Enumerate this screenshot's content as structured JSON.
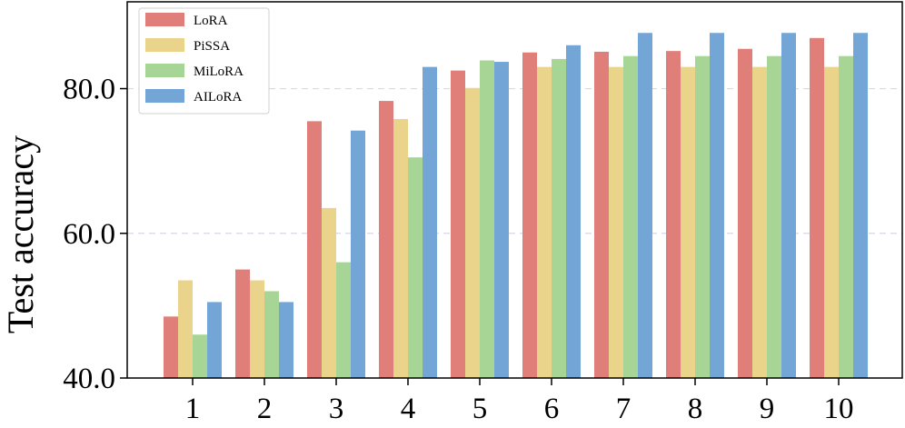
{
  "chart_data": {
    "type": "bar",
    "categories": [
      "1",
      "2",
      "3",
      "4",
      "5",
      "6",
      "7",
      "8",
      "9",
      "10"
    ],
    "series": [
      {
        "name": "LoRA",
        "color": "#e07f7a",
        "values": [
          48.5,
          55.0,
          75.5,
          78.3,
          82.5,
          85.0,
          85.1,
          85.2,
          85.5,
          87.0
        ]
      },
      {
        "name": "PiSSA",
        "color": "#ead48c",
        "values": [
          53.5,
          53.5,
          63.5,
          75.8,
          80.1,
          83.0,
          83.0,
          83.0,
          83.0,
          83.0
        ]
      },
      {
        "name": "MiLoRA",
        "color": "#a7d596",
        "values": [
          46.0,
          52.0,
          56.0,
          70.5,
          83.9,
          84.1,
          84.5,
          84.5,
          84.5,
          84.5
        ]
      },
      {
        "name": "AILoRA",
        "color": "#73a5d6",
        "values": [
          50.5,
          50.5,
          74.2,
          83.0,
          83.7,
          86.0,
          87.7,
          87.7,
          87.7,
          87.7
        ]
      }
    ],
    "title": "",
    "xlabel": "",
    "ylabel": "Test accuracy",
    "ylim": [
      40,
      92
    ],
    "yticks": [
      40.0,
      60.0,
      80.0
    ],
    "ytick_labels": [
      "40.0",
      "60.0",
      "80.0"
    ],
    "grid": "horizontal-dashed",
    "legend_position": "top-left"
  }
}
